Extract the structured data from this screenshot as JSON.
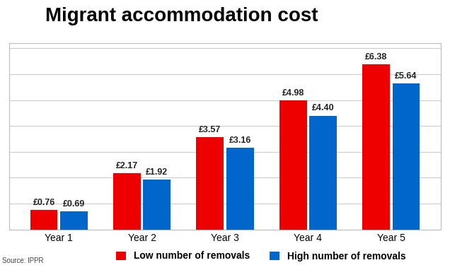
{
  "chart_data": {
    "type": "bar",
    "title": "Migrant accommodation cost",
    "categories": [
      "Year 1",
      "Year 2",
      "Year 3",
      "Year 4",
      "Year 5"
    ],
    "series": [
      {
        "name": "Low number of removals",
        "color": "#ee0000",
        "values": [
          0.76,
          2.17,
          3.57,
          4.98,
          6.38
        ],
        "value_labels": [
          "£0.76",
          "£2.17",
          "£3.57",
          "£4.98",
          "£6.38"
        ]
      },
      {
        "name": "High number of removals",
        "color": "#0066cc",
        "values": [
          0.69,
          1.92,
          3.16,
          4.4,
          5.64
        ],
        "value_labels": [
          "£0.69",
          "£1.92",
          "£3.16",
          "£4.40",
          "£5.64"
        ]
      }
    ],
    "ylim": [
      0,
      7.2
    ],
    "yticks": [
      0,
      1,
      2,
      3,
      4,
      5,
      6,
      7
    ],
    "grid": true,
    "data_labels": true,
    "tick_labels": "x",
    "legend": "lower center",
    "annotations": [
      "Source: IPPR"
    ]
  }
}
